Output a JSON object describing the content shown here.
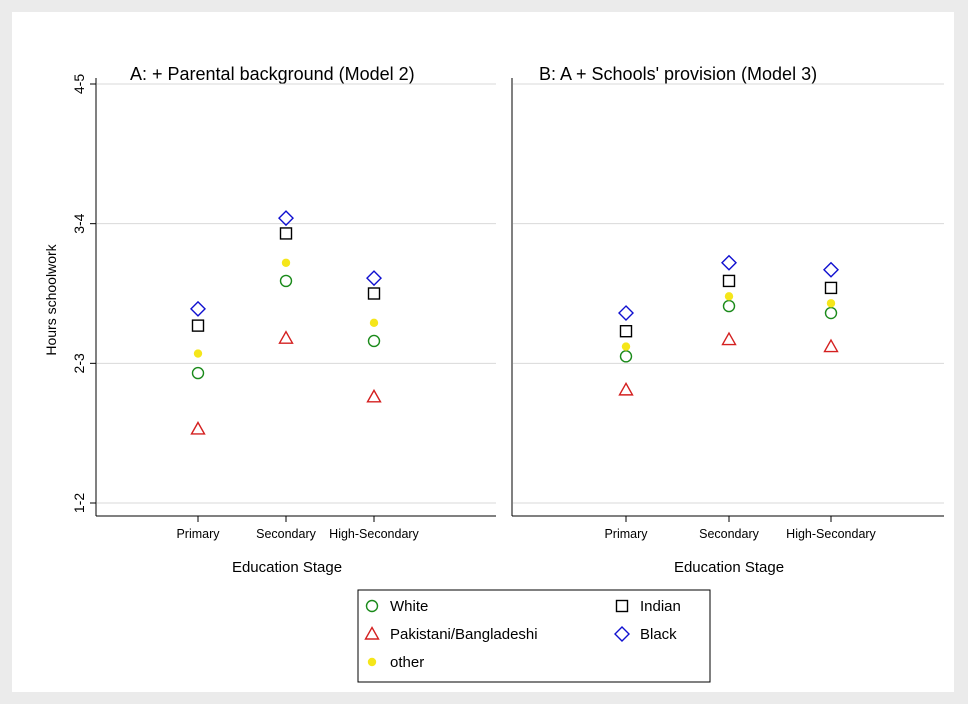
{
  "chart_data": [
    {
      "type": "scatter",
      "title": "A: + Parental background (Model 2)",
      "xlabel": "Education Stage",
      "ylabel": "Hours schoolwork",
      "categories": [
        "Primary",
        "Secondary",
        "High-Secondary"
      ],
      "yticks": [
        {
          "value": 1,
          "label": "1-2"
        },
        {
          "value": 2,
          "label": "2-3"
        },
        {
          "value": 3,
          "label": "3-4"
        },
        {
          "value": 4,
          "label": "4-5"
        }
      ],
      "ylim": [
        1,
        4
      ],
      "grid": true,
      "series": [
        {
          "name": "White",
          "values": [
            1.93,
            2.59,
            2.16
          ]
        },
        {
          "name": "Pakistani/Bangladeshi",
          "values": [
            1.53,
            2.18,
            1.76
          ]
        },
        {
          "name": "other",
          "values": [
            2.07,
            2.72,
            2.29
          ]
        },
        {
          "name": "Indian",
          "values": [
            2.27,
            2.93,
            2.5
          ]
        },
        {
          "name": "Black",
          "values": [
            2.39,
            3.04,
            2.61
          ]
        }
      ]
    },
    {
      "type": "scatter",
      "title": "B: A + Schools' provision (Model 3)",
      "xlabel": "Education Stage",
      "ylabel": "",
      "categories": [
        "Primary",
        "Secondary",
        "High-Secondary"
      ],
      "ylim": [
        1,
        4
      ],
      "grid": true,
      "series": [
        {
          "name": "White",
          "values": [
            2.05,
            2.41,
            2.36
          ]
        },
        {
          "name": "Pakistani/Bangladeshi",
          "values": [
            1.81,
            2.17,
            2.12
          ]
        },
        {
          "name": "other",
          "values": [
            2.12,
            2.48,
            2.43
          ]
        },
        {
          "name": "Indian",
          "values": [
            2.23,
            2.59,
            2.54
          ]
        },
        {
          "name": "Black",
          "values": [
            2.36,
            2.72,
            2.67
          ]
        }
      ]
    }
  ],
  "legend": {
    "placement": "bottom",
    "items": [
      {
        "label": "White",
        "symbol": "circle",
        "color": "#1a8a1a"
      },
      {
        "label": "Indian",
        "symbol": "square",
        "color": "#000000"
      },
      {
        "label": "Pakistani/Bangladeshi",
        "symbol": "triangle",
        "color": "#d42020"
      },
      {
        "label": "Black",
        "symbol": "diamond",
        "color": "#1010d0"
      },
      {
        "label": "other",
        "symbol": "dot",
        "color": "#f5e61a"
      }
    ]
  },
  "colors": {
    "White": "#1a8a1a",
    "Pakistani/Bangladeshi": "#d42020",
    "other": "#f5e61a",
    "Indian": "#000000",
    "Black": "#1010d0",
    "frame": "#ebebeb",
    "grid": "#d9d9d9"
  }
}
